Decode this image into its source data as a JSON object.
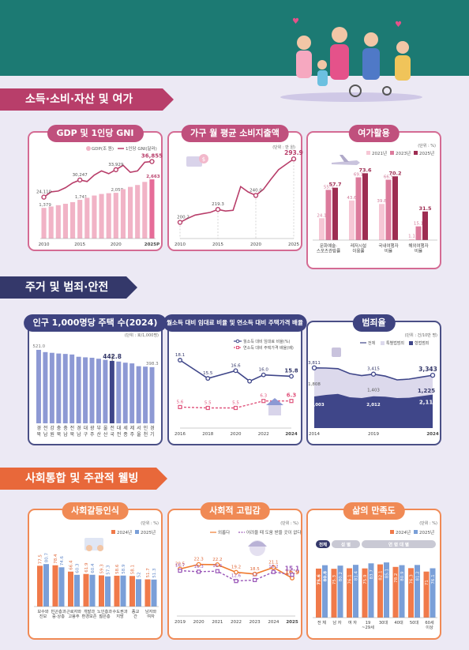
{
  "sections": {
    "income": "소득·소비·자산 및 여가",
    "housing": "주거 및 범죄·안전",
    "social": "사회통합 및 주관적 웰빙"
  },
  "colors": {
    "pink": "#b83e6a",
    "pink_light": "#f1b3c6",
    "navy": "#34386a",
    "blue": "#8d99d4",
    "orange": "#e8683a",
    "purple": "#9a57b8",
    "teal": "#1c7a73"
  },
  "icons": [
    "family-illustration",
    "money-icon",
    "airplane-icon",
    "house-icon",
    "police-icon",
    "people-icon",
    "person-umbrella-icon"
  ],
  "chart_data": [
    {
      "id": "gdp",
      "title": "GDP 및 1인당 GNI",
      "type": "bar",
      "legend": [
        "GDP(조 원)",
        "1인당 GNI(달러)"
      ],
      "x": [
        "2010",
        "2011",
        "2012",
        "2013",
        "2014",
        "2015",
        "2016",
        "2017",
        "2018",
        "2019",
        "2020",
        "2021",
        "2022",
        "2023",
        "2024",
        "2025P"
      ],
      "tick_labels": [
        "2010",
        "2015",
        "2020",
        "2025P"
      ],
      "gdp": [
        1379,
        1440,
        1500,
        1563,
        1638,
        1741,
        1833,
        1935,
        2006,
        2040,
        2058,
        2222,
        2324,
        2409,
        2549,
        2663
      ],
      "gni": [
        24110,
        26000,
        26300,
        27500,
        29200,
        30247,
        29700,
        32000,
        33500,
        32500,
        33929,
        35500,
        33000,
        33500,
        36600,
        36855
      ],
      "labels_gdp": {
        "0": "1,379",
        "5": "1,741",
        "10": "2,058",
        "15": "2,663"
      },
      "labels_gni": {
        "0": "24,110",
        "5": "30,247",
        "10": "33,929",
        "15": "36,855"
      }
    },
    {
      "id": "spend",
      "title": "가구 월 평균 소비지출액",
      "type": "line",
      "unit": "(단위 : 만 원)",
      "x": [
        2010,
        2011,
        2012,
        2013,
        2014,
        2015,
        2016,
        2017,
        2018,
        2019,
        2020,
        2021,
        2022,
        2023,
        2024,
        2025
      ],
      "tick_labels": [
        "2010",
        "2015",
        "2020",
        "2025"
      ],
      "values": [
        200.2,
        206,
        211,
        213,
        215,
        219.3,
        217,
        218,
        253,
        245,
        240.0,
        249,
        264,
        278,
        286,
        293.9
      ],
      "labels": {
        "0": "200.2",
        "5": "219.3",
        "10": "240.0",
        "15": "293.9"
      }
    },
    {
      "id": "leisure",
      "title": "여가활용",
      "type": "bar",
      "unit": "(단위 : %)",
      "legend": [
        "2021년",
        "2023년",
        "2025년"
      ],
      "categories": [
        "문화예술·\n스포츠관람률",
        "레저시설\n이용률",
        "국내여행자\n비율",
        "해외여행자\n비율"
      ],
      "series": [
        {
          "name": "2021년",
          "values": [
            24.1,
            43.6,
            39.8,
            1.1
          ]
        },
        {
          "name": "2023년",
          "values": [
            55.3,
            69.1,
            66.5,
            15.1
          ]
        },
        {
          "name": "2025년",
          "values": [
            57.7,
            73.6,
            70.2,
            31.5
          ]
        }
      ]
    },
    {
      "id": "housing",
      "title": "인구 1,000명당 주택 수(2024)",
      "type": "bar",
      "unit": "(단위 : 호/1,000명)",
      "categories": [
        "경북",
        "전남",
        "강원",
        "충북",
        "충남",
        "전북",
        "경남",
        "대구",
        "광주",
        "부산",
        "울산",
        "전국",
        "대전",
        "세종",
        "제주",
        "서울",
        "인천",
        "경기"
      ],
      "values": [
        521.0,
        505,
        500,
        495,
        492,
        488,
        472,
        468,
        465,
        458,
        450,
        442.8,
        438,
        430,
        425,
        405,
        402,
        398.3
      ],
      "labels": {
        "0": "521.0",
        "11": "442.8",
        "17": "398.3"
      }
    },
    {
      "id": "rent",
      "title": "월소득 대비 임대료 비율 및 연소득 대비 주택가격 배율",
      "type": "line",
      "legend": [
        "월소득 대비 임대료 비율(%)",
        "연소득 대비 주택가격 배율(배)"
      ],
      "x": [
        2016,
        2017,
        2018,
        2019,
        2020,
        2021,
        2022,
        2023,
        2024
      ],
      "tick_labels": [
        "2016",
        "2018",
        "2020",
        "2022",
        "2024"
      ],
      "rent": [
        18.1,
        null,
        15.5,
        null,
        16.6,
        15.1,
        16.0,
        null,
        15.8
      ],
      "price": [
        5.6,
        null,
        5.5,
        null,
        5.5,
        null,
        6.3,
        null,
        6.3
      ],
      "labels_rent": {
        "0": "18.1",
        "2": "15.5",
        "4": "16.6",
        "6": "16.0",
        "8": "15.8"
      },
      "labels_price": {
        "0": "5.6",
        "2": "5.5",
        "4": "5.5",
        "6": "6.3",
        "8": "6.3"
      }
    },
    {
      "id": "crime",
      "title": "범죄율",
      "type": "area",
      "unit": "(단위 : 건/10만 명)",
      "legend": [
        "전체",
        "특별법범죄",
        "형법범죄"
      ],
      "x": [
        2014,
        2015,
        2016,
        2017,
        2018,
        2019,
        2020,
        2021,
        2022,
        2023,
        2024
      ],
      "tick_labels": [
        "2014",
        "2019",
        "2024"
      ],
      "total": [
        3811,
        3800,
        3760,
        3450,
        3320,
        3415,
        3290,
        3050,
        3100,
        3220,
        3343
      ],
      "special": [
        1808,
        1700,
        1600,
        1500,
        1420,
        1403,
        1300,
        1150,
        1180,
        1200,
        1225
      ],
      "criminal": [
        2003,
        2100,
        2160,
        1950,
        1900,
        2012,
        1990,
        1900,
        1920,
        2020,
        2118
      ],
      "labels_total": {
        "0": "3,811",
        "5": "3,415",
        "10": "3,343"
      },
      "labels_special": {
        "0": "1,808",
        "5": "1,403",
        "10": "1,225"
      },
      "labels_criminal": {
        "0": "2,003",
        "5": "2,012",
        "10": "2,118"
      }
    },
    {
      "id": "conflict",
      "title": "사회갈등인식",
      "type": "bar",
      "unit": "(단위 : %)",
      "legend": [
        "2024년",
        "2025년"
      ],
      "categories": [
        "보수와\n진보",
        "빈곤층과\n중·상층",
        "근로자와\n고용주",
        "개발과\n환경보존",
        "노인층과\n젊은층",
        "수도권과\n지방",
        "종교\n간",
        "남자와\n여자"
      ],
      "series": [
        {
          "name": "2024년",
          "values": [
            77.5,
            78.4,
            66.4,
            61.9,
            59.3,
            58.6,
            58.1,
            51.7
          ]
        },
        {
          "name": "2025년",
          "values": [
            80.7,
            74.6,
            60.3,
            60.4,
            57.3,
            58.9,
            52.0,
            51.3
          ]
        }
      ]
    },
    {
      "id": "isolation",
      "title": "사회적 고립감",
      "type": "line",
      "unit": "(단위 : %)",
      "legend": [
        "외롭다",
        "어려울 때 도움 받을 곳이 없다"
      ],
      "x": [
        "2019",
        "2020",
        "2021",
        "2022",
        "2023",
        "2024",
        "2025"
      ],
      "lonely": [
        20.5,
        22.3,
        22.2,
        19.2,
        18.5,
        21.1,
        16.9
      ],
      "nohelp": [
        16.7,
        16.3,
        16.5,
        12.6,
        13.0,
        16.2,
        15.1
      ]
    },
    {
      "id": "satisfaction",
      "title": "삶의 만족도",
      "type": "bar",
      "unit": "(단위 : %)",
      "legend": [
        "2024년",
        "2025년"
      ],
      "group_labels": [
        "전체",
        "성 별",
        "연 령 대 별"
      ],
      "categories": [
        "전 체",
        "남 자",
        "여 자",
        "19\n~29세",
        "30대",
        "40대",
        "50대",
        "60세\n이상"
      ],
      "series": [
        {
          "name": "2024년",
          "values": [
            75.6,
            75.3,
            76.1,
            75.9,
            82.1,
            78.2,
            76.3,
            71.0
          ]
        },
        {
          "name": "2025년",
          "values": [
            80.8,
            80.2,
            81.4,
            83.7,
            85.1,
            80.9,
            81.2,
            76.1
          ]
        }
      ]
    }
  ]
}
